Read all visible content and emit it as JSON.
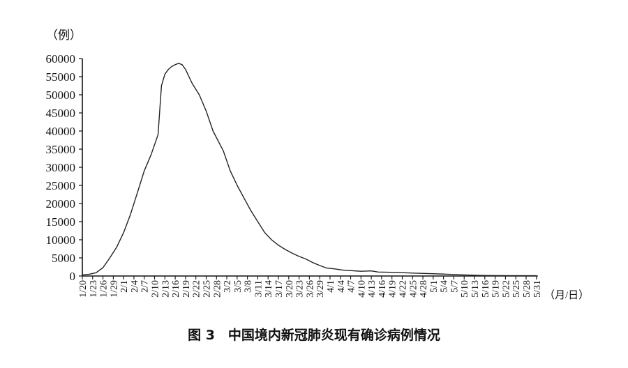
{
  "chart_data": {
    "type": "line",
    "title": "图 3　中国境内新冠肺炎现有确诊病例情况",
    "ylabel": "（例）",
    "xlabel": "（月/日）",
    "ylim": [
      0,
      60000
    ],
    "yticks": [
      0,
      5000,
      10000,
      15000,
      20000,
      25000,
      30000,
      35000,
      40000,
      45000,
      50000,
      55000,
      60000
    ],
    "xlim": [
      "1/20",
      "5/31"
    ],
    "xticks": [
      "1/20",
      "1/23",
      "1/26",
      "1/29",
      "2/1",
      "2/4",
      "2/7",
      "2/10",
      "2/13",
      "2/16",
      "2/19",
      "2/22",
      "2/25",
      "2/28",
      "3/2",
      "3/5",
      "3/8",
      "3/11",
      "3/14",
      "3/17",
      "3/20",
      "3/23",
      "3/26",
      "3/29",
      "4/1",
      "4/4",
      "4/7",
      "4/10",
      "4/13",
      "4/16",
      "4/19",
      "4/22",
      "4/25",
      "4/28",
      "5/1",
      "5/4",
      "5/7",
      "5/10",
      "5/13",
      "5/16",
      "5/19",
      "5/22",
      "5/25",
      "5/28",
      "5/31"
    ],
    "grid": false,
    "legend": "none",
    "line_color": "#222222",
    "series": [
      {
        "x": [
          "1/20",
          "1/22",
          "1/24",
          "1/26",
          "1/28",
          "1/30",
          "2/1",
          "2/3",
          "2/5",
          "2/7",
          "2/9",
          "2/11",
          "2/12",
          "2/13",
          "2/14",
          "2/15",
          "2/16",
          "2/17",
          "2/18",
          "2/19",
          "2/20",
          "2/21",
          "2/23",
          "2/25",
          "2/27",
          "3/1",
          "3/3",
          "3/5",
          "3/7",
          "3/9",
          "3/11",
          "3/13",
          "3/15",
          "3/17",
          "3/19",
          "3/21",
          "3/23",
          "3/25",
          "3/27",
          "3/29",
          "3/31",
          "4/2",
          "4/5",
          "4/10",
          "4/13",
          "4/15",
          "4/20",
          "4/25",
          "4/30",
          "5/5",
          "5/10",
          "5/15",
          "5/20",
          "5/31"
        ],
        "y": [
          300,
          500,
          900,
          2300,
          5000,
          8000,
          12000,
          17000,
          23000,
          29000,
          33500,
          39000,
          52500,
          55700,
          57000,
          57800,
          58300,
          58700,
          58300,
          57000,
          55000,
          53000,
          50000,
          45500,
          40000,
          34500,
          29000,
          25000,
          21500,
          18000,
          15000,
          12000,
          10000,
          8500,
          7300,
          6300,
          5400,
          4700,
          3700,
          2900,
          2200,
          2000,
          1600,
          1300,
          1400,
          1100,
          1000,
          800,
          650,
          500,
          300,
          150,
          100,
          80
        ]
      }
    ]
  }
}
